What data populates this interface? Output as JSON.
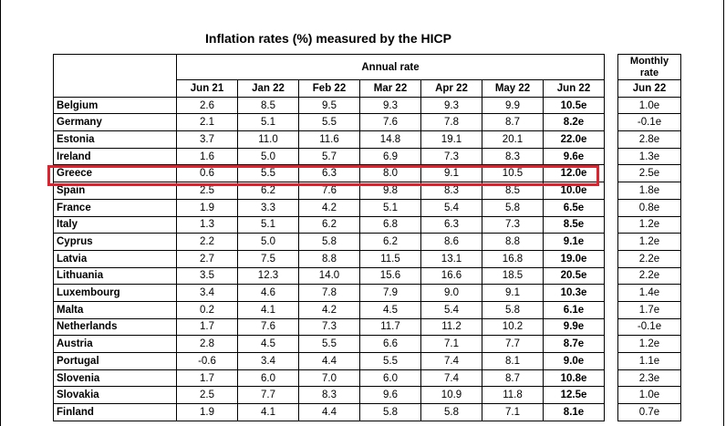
{
  "title": "Inflation rates (%) measured by the HICP",
  "annual_label": "Annual rate",
  "monthly_label_line1": "Monthly",
  "monthly_label_line2": "rate",
  "columns": [
    "Jun 21",
    "Jan 22",
    "Feb 22",
    "Mar 22",
    "Apr 22",
    "May 22",
    "Jun 22"
  ],
  "monthly_column": "Jun 22",
  "highlighted_country": "Greece",
  "highlight_color": "#e0212e",
  "rows": [
    {
      "country": "Belgium",
      "values": [
        "2.6",
        "8.5",
        "9.5",
        "9.3",
        "9.3",
        "9.9",
        "10.5e"
      ],
      "monthly": "1.0e"
    },
    {
      "country": "Germany",
      "values": [
        "2.1",
        "5.1",
        "5.5",
        "7.6",
        "7.8",
        "8.7",
        "8.2e"
      ],
      "monthly": "-0.1e"
    },
    {
      "country": "Estonia",
      "values": [
        "3.7",
        "11.0",
        "11.6",
        "14.8",
        "19.1",
        "20.1",
        "22.0e"
      ],
      "monthly": "2.8e"
    },
    {
      "country": "Ireland",
      "values": [
        "1.6",
        "5.0",
        "5.7",
        "6.9",
        "7.3",
        "8.3",
        "9.6e"
      ],
      "monthly": "1.3e"
    },
    {
      "country": "Greece",
      "values": [
        "0.6",
        "5.5",
        "6.3",
        "8.0",
        "9.1",
        "10.5",
        "12.0e"
      ],
      "monthly": "2.5e"
    },
    {
      "country": "Spain",
      "values": [
        "2.5",
        "6.2",
        "7.6",
        "9.8",
        "8.3",
        "8.5",
        "10.0e"
      ],
      "monthly": "1.8e"
    },
    {
      "country": "France",
      "values": [
        "1.9",
        "3.3",
        "4.2",
        "5.1",
        "5.4",
        "5.8",
        "6.5e"
      ],
      "monthly": "0.8e"
    },
    {
      "country": "Italy",
      "values": [
        "1.3",
        "5.1",
        "6.2",
        "6.8",
        "6.3",
        "7.3",
        "8.5e"
      ],
      "monthly": "1.2e"
    },
    {
      "country": "Cyprus",
      "values": [
        "2.2",
        "5.0",
        "5.8",
        "6.2",
        "8.6",
        "8.8",
        "9.1e"
      ],
      "monthly": "1.2e"
    },
    {
      "country": "Latvia",
      "values": [
        "2.7",
        "7.5",
        "8.8",
        "11.5",
        "13.1",
        "16.8",
        "19.0e"
      ],
      "monthly": "2.2e"
    },
    {
      "country": "Lithuania",
      "values": [
        "3.5",
        "12.3",
        "14.0",
        "15.6",
        "16.6",
        "18.5",
        "20.5e"
      ],
      "monthly": "2.2e"
    },
    {
      "country": "Luxembourg",
      "values": [
        "3.4",
        "4.6",
        "7.8",
        "7.9",
        "9.0",
        "9.1",
        "10.3e"
      ],
      "monthly": "1.4e"
    },
    {
      "country": "Malta",
      "values": [
        "0.2",
        "4.1",
        "4.2",
        "4.5",
        "5.4",
        "5.8",
        "6.1e"
      ],
      "monthly": "1.7e"
    },
    {
      "country": "Netherlands",
      "values": [
        "1.7",
        "7.6",
        "7.3",
        "11.7",
        "11.2",
        "10.2",
        "9.9e"
      ],
      "monthly": "-0.1e"
    },
    {
      "country": "Austria",
      "values": [
        "2.8",
        "4.5",
        "5.5",
        "6.6",
        "7.1",
        "7.7",
        "8.7e"
      ],
      "monthly": "1.2e"
    },
    {
      "country": "Portugal",
      "values": [
        "-0.6",
        "3.4",
        "4.4",
        "5.5",
        "7.4",
        "8.1",
        "9.0e"
      ],
      "monthly": "1.1e"
    },
    {
      "country": "Slovenia",
      "values": [
        "1.7",
        "6.0",
        "7.0",
        "6.0",
        "7.4",
        "8.7",
        "10.8e"
      ],
      "monthly": "2.3e"
    },
    {
      "country": "Slovakia",
      "values": [
        "2.5",
        "7.7",
        "8.3",
        "9.6",
        "10.9",
        "11.8",
        "12.5e"
      ],
      "monthly": "1.0e"
    },
    {
      "country": "Finland",
      "values": [
        "1.9",
        "4.1",
        "4.4",
        "5.8",
        "5.8",
        "7.1",
        "8.1e"
      ],
      "monthly": "0.7e"
    }
  ]
}
